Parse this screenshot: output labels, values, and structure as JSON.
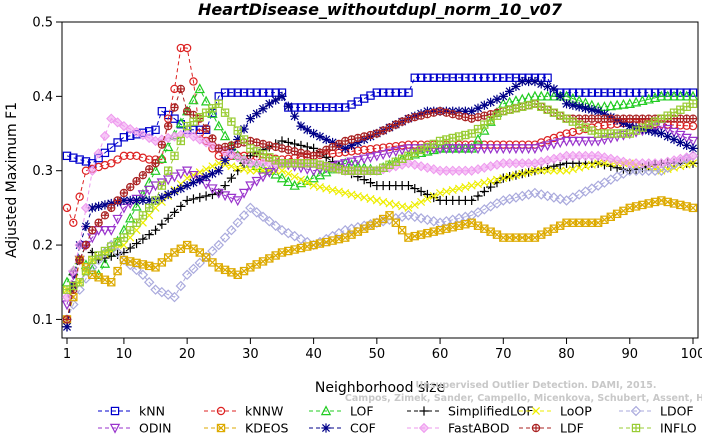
{
  "chart_data": {
    "type": "line",
    "title": "HeartDisease_withoutdupl_norm_10_v07",
    "xlabel": "Neighborhood size",
    "ylabel": "Adjusted Maximum F1",
    "xlim": [
      1,
      100
    ],
    "ylim": [
      0.075,
      0.5
    ],
    "x_ticks": [
      1,
      10,
      20,
      30,
      40,
      50,
      60,
      70,
      80,
      90,
      100
    ],
    "y_ticks": [
      0.1,
      0.2,
      0.3,
      0.4,
      0.5
    ],
    "grid": false,
    "legend_position": "bottom",
    "watermark": [
      "Campos, Zimek, Sander, Campello, Micenkova, Schubert, Assent, Houle",
      "Unsupervised Outlier Detection. DAMI, 2015."
    ],
    "series": [
      {
        "name": "kNN",
        "color": "#0000cc",
        "marker": "square",
        "lty": "dashed",
        "k": [
          1,
          5,
          10,
          15,
          16,
          18,
          20,
          23,
          25,
          26,
          35,
          36,
          45,
          50,
          55,
          56,
          70,
          77,
          78,
          85,
          100
        ],
        "v": [
          0.32,
          0.31,
          0.345,
          0.355,
          0.38,
          0.37,
          0.355,
          0.355,
          0.4,
          0.405,
          0.405,
          0.385,
          0.385,
          0.405,
          0.405,
          0.425,
          0.425,
          0.425,
          0.405,
          0.405,
          0.405
        ]
      },
      {
        "name": "kNNW",
        "color": "#dd2222",
        "marker": "circle",
        "lty": "dashed",
        "k": [
          1,
          2,
          4,
          8,
          10,
          12,
          14,
          16,
          17,
          18,
          19,
          20,
          21,
          22,
          25,
          30,
          35,
          40,
          45,
          50,
          55,
          60,
          70,
          75,
          80,
          85,
          90,
          100
        ],
        "v": [
          0.25,
          0.23,
          0.3,
          0.31,
          0.32,
          0.32,
          0.315,
          0.315,
          0.37,
          0.41,
          0.465,
          0.465,
          0.42,
          0.35,
          0.32,
          0.32,
          0.315,
          0.32,
          0.325,
          0.33,
          0.335,
          0.335,
          0.335,
          0.335,
          0.35,
          0.36,
          0.365,
          0.36
        ]
      },
      {
        "name": "LOF",
        "color": "#22cc22",
        "marker": "triangle-up",
        "lty": "dashed",
        "k": [
          1,
          3,
          6,
          10,
          15,
          20,
          22,
          25,
          28,
          30,
          33,
          35,
          37,
          40,
          45,
          50,
          55,
          60,
          65,
          70,
          75,
          80,
          85,
          90,
          95,
          100
        ],
        "v": [
          0.15,
          0.18,
          0.16,
          0.22,
          0.3,
          0.38,
          0.41,
          0.36,
          0.32,
          0.31,
          0.3,
          0.29,
          0.28,
          0.29,
          0.31,
          0.3,
          0.32,
          0.33,
          0.33,
          0.39,
          0.4,
          0.4,
          0.385,
          0.39,
          0.4,
          0.4
        ]
      },
      {
        "name": "SimplifiedLOF",
        "color": "#000000",
        "marker": "plus",
        "lty": "dashed",
        "k": [
          1,
          2,
          4,
          6,
          10,
          15,
          20,
          25,
          30,
          35,
          40,
          45,
          50,
          55,
          60,
          65,
          70,
          75,
          80,
          85,
          90,
          95,
          100
        ],
        "v": [
          0.09,
          0.16,
          0.2,
          0.18,
          0.19,
          0.22,
          0.26,
          0.27,
          0.32,
          0.34,
          0.33,
          0.3,
          0.28,
          0.28,
          0.26,
          0.26,
          0.29,
          0.3,
          0.31,
          0.31,
          0.3,
          0.31,
          0.31
        ]
      },
      {
        "name": "LoOP",
        "color": "#eeee00",
        "marker": "x",
        "lty": "dashed",
        "k": [
          1,
          3,
          5,
          10,
          15,
          20,
          25,
          30,
          35,
          40,
          45,
          50,
          55,
          60,
          65,
          70,
          75,
          80,
          85,
          90,
          95,
          100
        ],
        "v": [
          0.14,
          0.15,
          0.18,
          0.2,
          0.25,
          0.29,
          0.31,
          0.3,
          0.3,
          0.28,
          0.27,
          0.26,
          0.25,
          0.27,
          0.28,
          0.29,
          0.3,
          0.3,
          0.31,
          0.31,
          0.3,
          0.31
        ]
      },
      {
        "name": "LDOF",
        "color": "#aaaadd",
        "marker": "diamond",
        "lty": "dashed",
        "k": [
          1,
          3,
          5,
          8,
          10,
          13,
          15,
          18,
          20,
          25,
          30,
          35,
          40,
          45,
          50,
          55,
          60,
          65,
          70,
          75,
          80,
          85,
          90,
          95,
          100
        ],
        "v": [
          0.1,
          0.14,
          0.17,
          0.2,
          0.18,
          0.16,
          0.14,
          0.13,
          0.16,
          0.2,
          0.25,
          0.22,
          0.2,
          0.22,
          0.23,
          0.24,
          0.23,
          0.24,
          0.26,
          0.27,
          0.26,
          0.28,
          0.3,
          0.3,
          0.32
        ]
      },
      {
        "name": "ODIN",
        "color": "#9933cc",
        "marker": "triangle-down",
        "lty": "dashed",
        "k": [
          1,
          2,
          4,
          6,
          8,
          10,
          15,
          20,
          25,
          28,
          30,
          35,
          40,
          45,
          50,
          55,
          60,
          65,
          70,
          75,
          80,
          85,
          90,
          95,
          100
        ],
        "v": [
          0.12,
          0.16,
          0.2,
          0.22,
          0.22,
          0.25,
          0.28,
          0.3,
          0.27,
          0.26,
          0.28,
          0.31,
          0.3,
          0.31,
          0.32,
          0.33,
          0.33,
          0.33,
          0.33,
          0.33,
          0.34,
          0.34,
          0.35,
          0.36,
          0.34
        ]
      },
      {
        "name": "KDEOS",
        "color": "#ddaa00",
        "marker": "square-x",
        "lty": "dashed",
        "k": [
          1,
          2,
          3,
          5,
          8,
          10,
          15,
          18,
          20,
          22,
          25,
          28,
          30,
          35,
          40,
          45,
          50,
          52,
          55,
          60,
          65,
          70,
          75,
          80,
          85,
          90,
          95,
          100
        ],
        "v": [
          0.1,
          0.13,
          0.18,
          0.16,
          0.15,
          0.18,
          0.17,
          0.19,
          0.2,
          0.19,
          0.17,
          0.16,
          0.17,
          0.19,
          0.2,
          0.21,
          0.23,
          0.24,
          0.21,
          0.22,
          0.23,
          0.21,
          0.21,
          0.23,
          0.23,
          0.25,
          0.26,
          0.25
        ]
      },
      {
        "name": "COF",
        "color": "#000088",
        "marker": "asterisk",
        "lty": "dashed",
        "k": [
          1,
          3,
          5,
          10,
          15,
          20,
          25,
          30,
          33,
          35,
          38,
          40,
          45,
          50,
          55,
          58,
          60,
          65,
          70,
          73,
          75,
          78,
          80,
          85,
          90,
          95,
          100
        ],
        "v": [
          0.09,
          0.2,
          0.25,
          0.26,
          0.26,
          0.28,
          0.3,
          0.37,
          0.39,
          0.4,
          0.36,
          0.35,
          0.33,
          0.35,
          0.37,
          0.38,
          0.38,
          0.38,
          0.4,
          0.42,
          0.42,
          0.41,
          0.39,
          0.38,
          0.36,
          0.35,
          0.33
        ]
      },
      {
        "name": "FastABOD",
        "color": "#ee99ee",
        "marker": "diamond-filled",
        "lty": "dashed",
        "k": [
          1,
          3,
          5,
          8,
          10,
          15,
          20,
          25,
          30,
          35,
          40,
          45,
          50,
          55,
          60,
          65,
          70,
          75,
          80,
          85,
          90,
          95,
          100
        ],
        "v": [
          0.13,
          0.2,
          0.3,
          0.37,
          0.36,
          0.34,
          0.35,
          0.33,
          0.31,
          0.31,
          0.31,
          0.3,
          0.3,
          0.31,
          0.3,
          0.3,
          0.31,
          0.31,
          0.32,
          0.32,
          0.31,
          0.31,
          0.32
        ]
      },
      {
        "name": "LDF",
        "color": "#aa2222",
        "marker": "circle-plus",
        "lty": "dashed",
        "k": [
          1,
          3,
          5,
          10,
          15,
          19,
          20,
          22,
          25,
          30,
          35,
          40,
          45,
          50,
          55,
          60,
          65,
          70,
          75,
          80,
          85,
          90,
          95,
          100
        ],
        "v": [
          0.1,
          0.18,
          0.22,
          0.27,
          0.31,
          0.41,
          0.38,
          0.37,
          0.33,
          0.34,
          0.33,
          0.32,
          0.34,
          0.35,
          0.37,
          0.38,
          0.37,
          0.38,
          0.39,
          0.37,
          0.37,
          0.37,
          0.37,
          0.37
        ]
      },
      {
        "name": "INFLO",
        "color": "#99cc33",
        "marker": "square-plus",
        "lty": "dashed",
        "k": [
          1,
          3,
          5,
          10,
          15,
          20,
          25,
          30,
          35,
          40,
          45,
          50,
          55,
          60,
          65,
          70,
          75,
          80,
          85,
          90,
          95,
          100
        ],
        "v": [
          0.14,
          0.15,
          0.18,
          0.21,
          0.26,
          0.36,
          0.39,
          0.33,
          0.31,
          0.31,
          0.3,
          0.3,
          0.32,
          0.34,
          0.35,
          0.38,
          0.39,
          0.37,
          0.35,
          0.35,
          0.37,
          0.39
        ]
      }
    ]
  }
}
